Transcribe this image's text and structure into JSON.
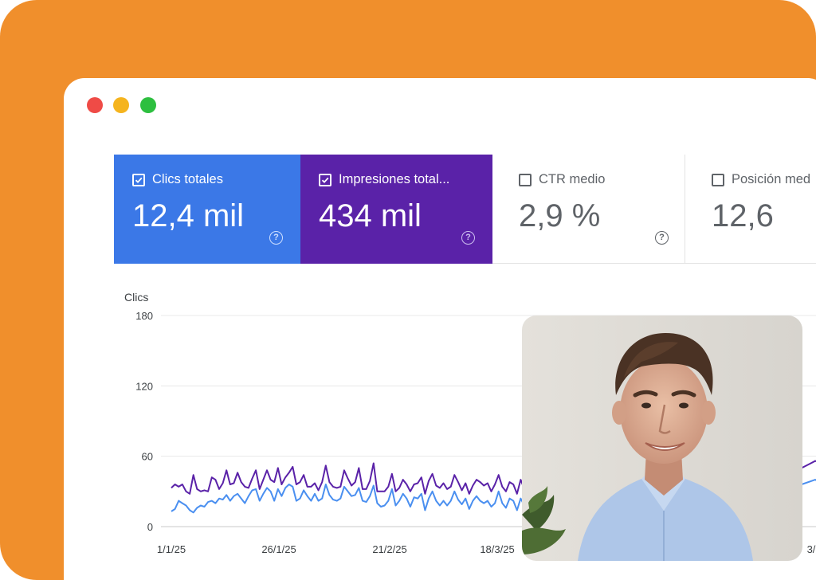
{
  "window": {
    "controls": [
      "close",
      "minimize",
      "maximize"
    ],
    "colors": {
      "close": "#ef4b46",
      "minimize": "#f5b41e",
      "maximize": "#2dbf3f"
    }
  },
  "metrics": [
    {
      "label": "Clics totales",
      "value": "12,4 mil",
      "selected": true,
      "color": "#3b78e7",
      "help": "?"
    },
    {
      "label": "Impresiones total...",
      "value": "434 mil",
      "selected": true,
      "color": "#5a22a8",
      "help": "?"
    },
    {
      "label": "CTR medio",
      "value": "2,9 %",
      "selected": false,
      "help": "?"
    },
    {
      "label": "Posición med",
      "value": "12,6",
      "selected": false
    }
  ],
  "chart_data": {
    "type": "line",
    "ylabel": "Clics",
    "yticks": [
      "180",
      "120",
      "60",
      "0"
    ],
    "xtick_labels": [
      "1/1/25",
      "26/1/25",
      "21/2/25",
      "18/3/25",
      "3/"
    ],
    "ylim": [
      0,
      180
    ],
    "grid": true,
    "series": [
      {
        "color": "#5a22a8",
        "values": [
          33,
          36,
          34,
          36,
          30,
          28,
          44,
          32,
          30,
          31,
          30,
          42,
          40,
          32,
          37,
          48,
          36,
          37,
          46,
          38,
          34,
          33,
          41,
          48,
          32,
          40,
          48,
          40,
          38,
          50,
          36,
          42,
          46,
          51,
          36,
          38,
          44,
          34,
          34,
          37,
          31,
          38,
          52,
          38,
          34,
          33,
          34,
          48,
          41,
          35,
          38,
          50,
          32,
          32,
          39,
          54,
          30,
          30,
          30,
          34,
          45,
          30,
          33,
          40,
          36,
          30,
          36,
          37,
          42,
          28,
          39,
          45,
          35,
          33,
          37,
          32,
          34,
          44,
          38,
          31,
          37,
          28,
          35,
          40,
          38,
          35,
          37,
          30,
          36,
          44,
          34,
          30,
          38,
          36,
          28,
          40,
          32
        ]
      },
      {
        "color": "#4a8ff0",
        "values": [
          13,
          15,
          22,
          20,
          18,
          14,
          12,
          16,
          18,
          17,
          21,
          22,
          20,
          24,
          23,
          27,
          22,
          26,
          28,
          24,
          20,
          26,
          31,
          32,
          22,
          28,
          33,
          30,
          22,
          32,
          26,
          33,
          36,
          34,
          22,
          24,
          31,
          26,
          22,
          28,
          22,
          24,
          36,
          27,
          23,
          22,
          24,
          34,
          30,
          26,
          27,
          33,
          22,
          21,
          26,
          35,
          20,
          17,
          18,
          22,
          32,
          18,
          22,
          28,
          24,
          17,
          25,
          24,
          28,
          14,
          24,
          30,
          22,
          18,
          22,
          18,
          22,
          30,
          23,
          19,
          24,
          15,
          22,
          26,
          22,
          20,
          22,
          17,
          20,
          30,
          20,
          16,
          24,
          22,
          14,
          24,
          18
        ]
      }
    ],
    "right_edge": {
      "series0": [
        50,
        56,
        52
      ],
      "series1": [
        36,
        40,
        34
      ]
    }
  }
}
